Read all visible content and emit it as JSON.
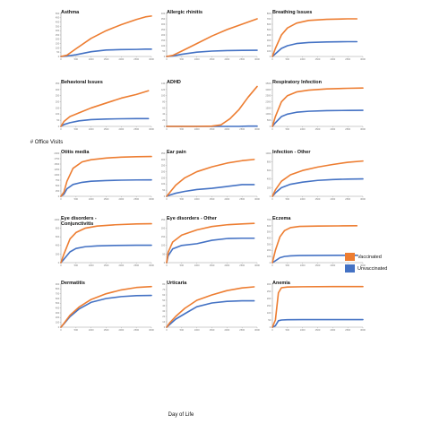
{
  "figure": {
    "ylabel": "# Office Visits",
    "xlabel": "Day of Life"
  },
  "legend": {
    "placement": "right",
    "items": [
      {
        "label": "Vaccinated",
        "color": "#ED7D31"
      },
      {
        "label": "Unvaccinated",
        "color": "#4472C4"
      }
    ]
  },
  "chart_data": [
    {
      "type": "line",
      "title": "Asthma",
      "xlim": [
        0,
        3000
      ],
      "ylim": [
        0,
        500
      ],
      "xticks": [
        0,
        500,
        1000,
        1500,
        2000,
        2500,
        3000
      ],
      "yticks": [
        0,
        50,
        100,
        150,
        200,
        250,
        300,
        350,
        400,
        450,
        500
      ],
      "x": [
        0,
        200,
        500,
        1000,
        1500,
        2000,
        2500,
        2800,
        3000
      ],
      "series": [
        {
          "name": "Vaccinated",
          "values": [
            0,
            15,
            90,
            210,
            300,
            370,
            430,
            460,
            470
          ]
        },
        {
          "name": "Unvaccinated",
          "values": [
            0,
            5,
            20,
            55,
            75,
            80,
            82,
            85,
            85
          ]
        }
      ]
    },
    {
      "type": "line",
      "title": "Allergic rhinitis",
      "xlim": [
        0,
        3000
      ],
      "ylim": [
        0,
        400
      ],
      "xticks": [
        0,
        500,
        1000,
        1500,
        2000,
        2500,
        3000
      ],
      "yticks": [
        0,
        50,
        100,
        150,
        200,
        250,
        300,
        350,
        400
      ],
      "x": [
        0,
        200,
        500,
        1000,
        1500,
        2000,
        2500,
        3000
      ],
      "series": [
        {
          "name": "Vaccinated",
          "values": [
            0,
            10,
            50,
            120,
            190,
            250,
            300,
            350
          ]
        },
        {
          "name": "Unvaccinated",
          "values": [
            0,
            5,
            20,
            40,
            50,
            55,
            57,
            58
          ]
        }
      ]
    },
    {
      "type": "line",
      "title": "Breathing Issues",
      "xlim": [
        0,
        3000
      ],
      "ylim": [
        0,
        800
      ],
      "xticks": [
        0,
        500,
        1000,
        1500,
        2000,
        2500,
        3000
      ],
      "yticks": [
        0,
        100,
        200,
        300,
        400,
        500,
        600,
        700,
        800
      ],
      "x": [
        0,
        100,
        300,
        500,
        800,
        1200,
        1800,
        2500,
        2800
      ],
      "series": [
        {
          "name": "Vaccinated",
          "values": [
            0,
            150,
            400,
            530,
            620,
            670,
            690,
            700,
            700
          ]
        },
        {
          "name": "Unvaccinated",
          "values": [
            0,
            50,
            150,
            200,
            240,
            260,
            270,
            275,
            275
          ]
        }
      ]
    },
    {
      "type": "line",
      "title": "Behavioral Issues",
      "xlim": [
        0,
        3000
      ],
      "ylim": [
        0,
        350
      ],
      "xticks": [
        0,
        500,
        1000,
        1500,
        2000,
        2500,
        3000
      ],
      "yticks": [
        0,
        50,
        100,
        150,
        200,
        250,
        300,
        350
      ],
      "x": [
        0,
        100,
        300,
        600,
        1000,
        1500,
        2000,
        2500,
        2900
      ],
      "series": [
        {
          "name": "Vaccinated",
          "values": [
            0,
            40,
            80,
            110,
            150,
            190,
            230,
            260,
            290
          ]
        },
        {
          "name": "Unvaccinated",
          "values": [
            0,
            15,
            30,
            45,
            55,
            60,
            62,
            63,
            63
          ]
        }
      ]
    },
    {
      "type": "line",
      "title": "ADHD",
      "xlim": [
        0,
        3000
      ],
      "ylim": [
        0,
        140
      ],
      "xticks": [
        0,
        500,
        1000,
        1500,
        2000,
        2500,
        3000
      ],
      "yticks": [
        0,
        20,
        40,
        60,
        80,
        100,
        120,
        140
      ],
      "x": [
        0,
        500,
        1000,
        1500,
        1800,
        2100,
        2400,
        2700,
        3000
      ],
      "series": [
        {
          "name": "Vaccinated",
          "values": [
            0,
            0,
            0,
            1,
            5,
            25,
            55,
            95,
            130
          ]
        },
        {
          "name": "Unvaccinated",
          "values": [
            0,
            0,
            0,
            0,
            0,
            0,
            0,
            1,
            1
          ]
        }
      ]
    },
    {
      "type": "line",
      "title": "Respiratory Infection",
      "xlim": [
        0,
        3000
      ],
      "ylim": [
        0,
        3500
      ],
      "xticks": [
        0,
        500,
        1000,
        1500,
        2000,
        2500,
        3000
      ],
      "yticks": [
        0,
        500,
        1000,
        1500,
        2000,
        2500,
        3000,
        3500
      ],
      "x": [
        0,
        100,
        300,
        500,
        800,
        1200,
        1800,
        2500,
        3000
      ],
      "series": [
        {
          "name": "Vaccinated",
          "values": [
            0,
            800,
            2000,
            2500,
            2800,
            2950,
            3050,
            3100,
            3120
          ]
        },
        {
          "name": "Unvaccinated",
          "values": [
            0,
            300,
            800,
            1000,
            1150,
            1230,
            1280,
            1300,
            1310
          ]
        }
      ]
    },
    {
      "type": "line",
      "title": "Otitis media",
      "xlim": [
        0,
        3000
      ],
      "ylim": [
        0,
        2000
      ],
      "xticks": [
        0,
        500,
        1000,
        1500,
        2000,
        2500,
        3000
      ],
      "yticks": [
        0,
        250,
        500,
        750,
        1000,
        1250,
        1500,
        1750,
        2000
      ],
      "x": [
        0,
        100,
        200,
        400,
        700,
        1000,
        1500,
        2000,
        2500,
        3000
      ],
      "series": [
        {
          "name": "Vaccinated",
          "values": [
            0,
            200,
            700,
            1300,
            1600,
            1700,
            1780,
            1820,
            1840,
            1850
          ]
        },
        {
          "name": "Unvaccinated",
          "values": [
            0,
            100,
            350,
            550,
            650,
            700,
            730,
            750,
            760,
            765
          ]
        }
      ]
    },
    {
      "type": "line",
      "title": "Ear pain",
      "xlim": [
        0,
        3000
      ],
      "ylim": [
        0,
        350
      ],
      "xticks": [
        0,
        500,
        1000,
        1500,
        2000,
        2500,
        3000
      ],
      "yticks": [
        0,
        50,
        100,
        150,
        200,
        250,
        300,
        350
      ],
      "x": [
        0,
        100,
        300,
        600,
        1000,
        1500,
        2000,
        2500,
        2900
      ],
      "series": [
        {
          "name": "Vaccinated",
          "values": [
            0,
            30,
            90,
            150,
            200,
            240,
            270,
            290,
            300
          ]
        },
        {
          "name": "Unvaccinated",
          "values": [
            0,
            10,
            25,
            40,
            55,
            65,
            80,
            95,
            95
          ]
        }
      ]
    },
    {
      "type": "line",
      "title": "Infection - Other",
      "xlim": [
        0,
        3000
      ],
      "ylim": [
        0,
        1000
      ],
      "xticks": [
        0,
        500,
        1000,
        1500,
        2000,
        2500,
        3000
      ],
      "yticks": [
        0,
        200,
        400,
        600,
        800,
        1000
      ],
      "x": [
        0,
        100,
        300,
        600,
        1000,
        1500,
        2000,
        2500,
        3000
      ],
      "series": [
        {
          "name": "Vaccinated",
          "values": [
            0,
            150,
            350,
            500,
            600,
            680,
            740,
            790,
            820
          ]
        },
        {
          "name": "Unvaccinated",
          "values": [
            0,
            80,
            200,
            280,
            330,
            370,
            390,
            400,
            405
          ]
        }
      ]
    },
    {
      "type": "line",
      "title": "Eye disorders - Conjunctivitis",
      "xlim": [
        0,
        3000
      ],
      "ylim": [
        0,
        1000
      ],
      "xticks": [
        0,
        500,
        1000,
        1500,
        2000,
        2500,
        3000
      ],
      "yticks": [
        0,
        200,
        400,
        600,
        800,
        1000
      ],
      "x": [
        0,
        100,
        300,
        500,
        800,
        1200,
        1800,
        2500,
        3000
      ],
      "series": [
        {
          "name": "Vaccinated",
          "values": [
            0,
            200,
            550,
            700,
            800,
            850,
            880,
            900,
            905
          ]
        },
        {
          "name": "Unvaccinated",
          "values": [
            0,
            80,
            250,
            330,
            370,
            390,
            400,
            405,
            405
          ]
        }
      ]
    },
    {
      "type": "line",
      "title": "Eye disorders - Other",
      "xlim": [
        0,
        3000
      ],
      "ylim": [
        0,
        250
      ],
      "xticks": [
        0,
        500,
        1000,
        1500,
        2000,
        2500,
        3000
      ],
      "yticks": [
        0,
        50,
        100,
        150,
        200,
        250
      ],
      "x": [
        0,
        50,
        200,
        500,
        1000,
        1500,
        2000,
        2500,
        2900
      ],
      "series": [
        {
          "name": "Vaccinated",
          "values": [
            0,
            60,
            120,
            160,
            190,
            210,
            220,
            225,
            228
          ]
        },
        {
          "name": "Unvaccinated",
          "values": [
            0,
            40,
            80,
            100,
            110,
            130,
            140,
            142,
            142
          ]
        }
      ]
    },
    {
      "type": "line",
      "title": "Eczema",
      "xlim": [
        0,
        3000
      ],
      "ylim": [
        0,
        700
      ],
      "xticks": [
        0,
        500,
        1000,
        1500,
        2000,
        2500,
        3000
      ],
      "yticks": [
        0,
        100,
        200,
        300,
        400,
        500,
        600,
        700
      ],
      "x": [
        0,
        100,
        250,
        400,
        600,
        900,
        1500,
        2200,
        2800
      ],
      "series": [
        {
          "name": "Vaccinated",
          "values": [
            0,
            200,
            420,
            520,
            570,
            590,
            595,
            598,
            600
          ]
        },
        {
          "name": "Unvaccinated",
          "values": [
            0,
            30,
            80,
            100,
            110,
            115,
            118,
            120,
            120
          ]
        }
      ]
    },
    {
      "type": "line",
      "title": "Dermatitis",
      "xlim": [
        0,
        3000
      ],
      "ylim": [
        0,
        900
      ],
      "xticks": [
        0,
        500,
        1000,
        1500,
        2000,
        2500,
        3000
      ],
      "yticks": [
        0,
        100,
        200,
        300,
        400,
        500,
        600,
        700,
        800,
        900
      ],
      "x": [
        0,
        100,
        300,
        600,
        1000,
        1500,
        2000,
        2500,
        3000
      ],
      "series": [
        {
          "name": "Vaccinated",
          "values": [
            0,
            80,
            250,
            420,
            580,
            700,
            780,
            830,
            850
          ]
        },
        {
          "name": "Unvaccinated",
          "values": [
            0,
            70,
            220,
            380,
            520,
            600,
            640,
            660,
            665
          ]
        }
      ]
    },
    {
      "type": "line",
      "title": "Urticaria",
      "xlim": [
        0,
        3000
      ],
      "ylim": [
        0,
        80
      ],
      "xticks": [
        0,
        500,
        1000,
        1500,
        2000,
        2500,
        3000
      ],
      "yticks": [
        0,
        10,
        20,
        30,
        40,
        50,
        60,
        70,
        80
      ],
      "x": [
        0,
        100,
        300,
        600,
        1000,
        1500,
        2000,
        2500,
        2900
      ],
      "series": [
        {
          "name": "Vaccinated",
          "values": [
            0,
            8,
            20,
            35,
            50,
            60,
            68,
            73,
            75
          ]
        },
        {
          "name": "Unvaccinated",
          "values": [
            0,
            5,
            15,
            25,
            38,
            45,
            48,
            49,
            49
          ]
        }
      ]
    },
    {
      "type": "line",
      "title": "Anemia",
      "xlim": [
        0,
        3000
      ],
      "ylim": [
        0,
        300
      ],
      "xticks": [
        0,
        500,
        1000,
        1500,
        2000,
        2500,
        3000
      ],
      "yticks": [
        0,
        50,
        100,
        150,
        200,
        250,
        300
      ],
      "x": [
        0,
        100,
        200,
        300,
        500,
        1000,
        2000,
        3000
      ],
      "series": [
        {
          "name": "Vaccinated",
          "values": [
            0,
            50,
            240,
            275,
            280,
            282,
            283,
            283
          ]
        },
        {
          "name": "Unvaccinated",
          "values": [
            0,
            10,
            45,
            50,
            52,
            53,
            53,
            53
          ]
        }
      ]
    }
  ]
}
